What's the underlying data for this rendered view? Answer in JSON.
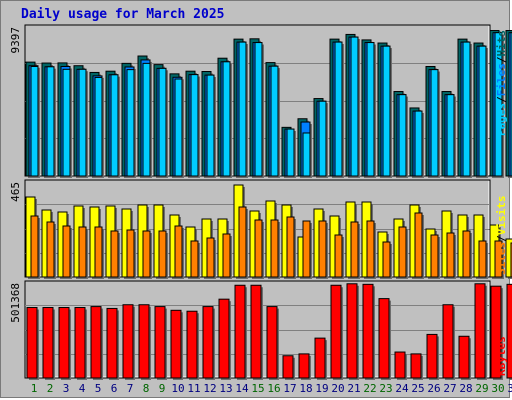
{
  "title": "Daily usage for March 2025",
  "colors": {
    "hits": "#006666",
    "files": "#0080ff",
    "pages": "#00ccff",
    "visits": "#ffff00",
    "sites": "#ff8000",
    "kbytes": "#ff0000",
    "weekend_label": "#006600",
    "weekday_label": "#000080"
  },
  "chart_data": [
    {
      "type": "bar",
      "title": "Daily usage for March 2025",
      "ymax_label": "9397",
      "ylim": [
        0,
        9397
      ],
      "legend": [
        "Hits",
        "Files",
        "Pages"
      ],
      "categories": [
        "1",
        "2",
        "3",
        "4",
        "5",
        "6",
        "7",
        "8",
        "9",
        "10",
        "11",
        "12",
        "13",
        "14",
        "15",
        "16",
        "17",
        "18",
        "19",
        "20",
        "21",
        "22",
        "23",
        "24",
        "25",
        "26",
        "27",
        "28",
        "29",
        "30",
        "31"
      ],
      "series": [
        {
          "name": "Hits",
          "values": [
            7280,
            7220,
            7230,
            7050,
            6620,
            6700,
            7200,
            7670,
            7120,
            6530,
            6700,
            6680,
            7530,
            8750,
            8770,
            7250,
            3110,
            3660,
            4950,
            8750,
            9050,
            8700,
            8500,
            5400,
            4350,
            7000,
            5400,
            8750,
            8500,
            9300,
            9300
          ]
        },
        {
          "name": "Files",
          "values": [
            7050,
            6980,
            7000,
            6820,
            6400,
            6470,
            6970,
            7420,
            6880,
            6310,
            6480,
            6450,
            7300,
            8560,
            8530,
            7020,
            3000,
            3450,
            4780,
            8560,
            8880,
            8530,
            8300,
            5200,
            4150,
            6800,
            5200,
            8560,
            8300,
            9160,
            9160
          ]
        },
        {
          "name": "Pages",
          "values": [
            7000,
            6980,
            6820,
            6820,
            6300,
            6470,
            6800,
            7200,
            6880,
            6200,
            6480,
            6450,
            7300,
            8560,
            8530,
            7020,
            3000,
            2750,
            4780,
            8560,
            8880,
            8530,
            8300,
            5200,
            4150,
            6800,
            5200,
            8560,
            8300,
            9160,
            9160
          ]
        }
      ]
    },
    {
      "type": "bar",
      "ymax_label": "465",
      "ylim": [
        0,
        465
      ],
      "legend": [
        "Visits",
        "Sites"
      ],
      "categories": [
        "1",
        "2",
        "3",
        "4",
        "5",
        "6",
        "7",
        "8",
        "9",
        "10",
        "11",
        "12",
        "13",
        "14",
        "15",
        "16",
        "17",
        "18",
        "19",
        "20",
        "21",
        "22",
        "23",
        "24",
        "25",
        "26",
        "27",
        "28",
        "29",
        "30",
        "31"
      ],
      "series": [
        {
          "name": "Visits",
          "values": [
            400,
            335,
            325,
            355,
            350,
            355,
            340,
            360,
            360,
            310,
            250,
            290,
            290,
            460,
            330,
            380,
            360,
            200,
            340,
            305,
            375,
            375,
            225,
            290,
            360,
            240,
            330,
            310,
            310,
            260,
            190
          ]
        },
        {
          "name": "Sites",
          "values": [
            305,
            275,
            255,
            250,
            250,
            230,
            235,
            230,
            230,
            255,
            180,
            195,
            215,
            350,
            285,
            285,
            300,
            280,
            280,
            210,
            275,
            280,
            175,
            250,
            320,
            210,
            220,
            230,
            180,
            180,
            170
          ]
        }
      ]
    },
    {
      "type": "bar",
      "ymax_label": "501368",
      "ylim": [
        0,
        501368
      ],
      "legend": [
        "KBytes"
      ],
      "categories": [
        "1",
        "2",
        "3",
        "4",
        "5",
        "6",
        "7",
        "8",
        "9",
        "10",
        "11",
        "12",
        "13",
        "14",
        "15",
        "16",
        "17",
        "18",
        "19",
        "20",
        "21",
        "22",
        "23",
        "24",
        "25",
        "26",
        "27",
        "28",
        "29",
        "30",
        "31"
      ],
      "series": [
        {
          "name": "KBytes",
          "values": [
            380000,
            380000,
            380000,
            380000,
            385000,
            375000,
            395000,
            395000,
            385000,
            365000,
            360000,
            385000,
            425000,
            500000,
            500000,
            385000,
            120000,
            130000,
            215000,
            500000,
            508000,
            505000,
            428000,
            140000,
            130000,
            235000,
            395000,
            225000,
            508000,
            495000,
            505000
          ]
        }
      ]
    }
  ],
  "x_labels": [
    "1",
    "2",
    "3",
    "4",
    "5",
    "6",
    "7",
    "8",
    "9",
    "10",
    "11",
    "12",
    "13",
    "14",
    "15",
    "16",
    "17",
    "18",
    "19",
    "20",
    "21",
    "22",
    "23",
    "24",
    "25",
    "26",
    "27",
    "28",
    "29",
    "30",
    "31"
  ],
  "weekend_days": [
    "1",
    "2",
    "8",
    "9",
    "15",
    "16",
    "22",
    "23",
    "29",
    "30"
  ],
  "legend_separator": "/"
}
